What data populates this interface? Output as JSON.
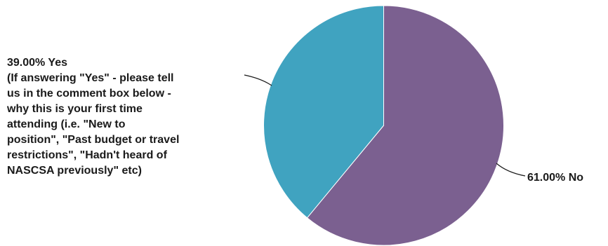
{
  "chart_data": {
    "type": "pie",
    "slices": [
      {
        "label": "No",
        "value": 61.0,
        "color": "#7b6090",
        "label_lines": [
          "61.00% No"
        ]
      },
      {
        "label": "Yes",
        "value": 39.0,
        "color": "#40a3c0",
        "label_lines": [
          "39.00% Yes",
          "(If answering \"Yes\" - please tell",
          "us in the comment box below -",
          "why this is your first time",
          "attending (i.e. \"New to",
          "position\", \"Past budget or travel",
          "restrictions\", \"Hadn't heard of",
          "NASCSA previously\" etc)"
        ]
      }
    ],
    "start": "12 o'clock",
    "direction": "clockwise",
    "legend": "none",
    "title": ""
  }
}
